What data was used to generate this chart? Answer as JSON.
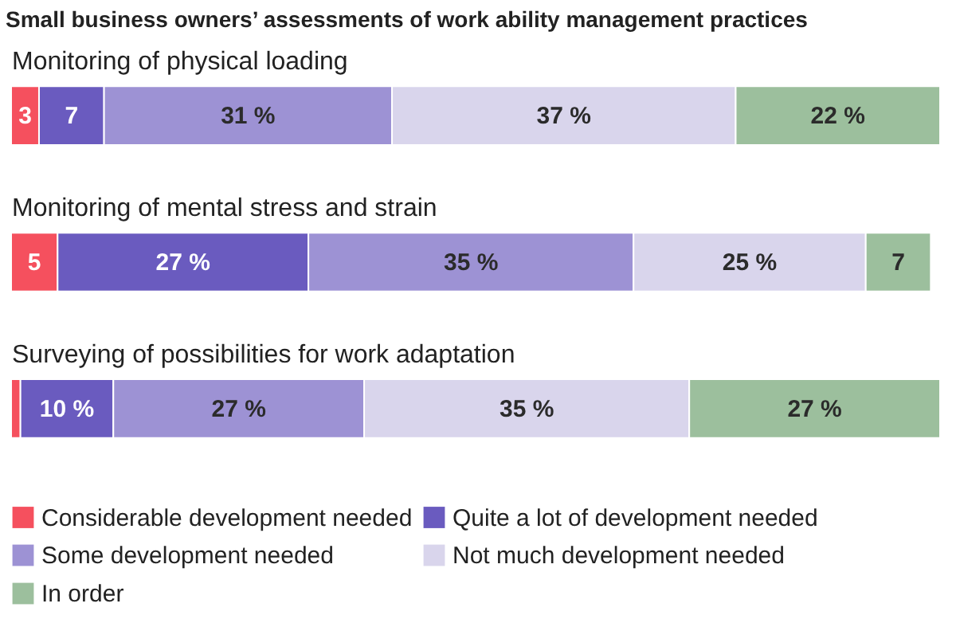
{
  "chart_data": {
    "type": "bar",
    "orientation": "horizontal",
    "stacked": true,
    "title": "Small business owners’ assessments of work ability management practices",
    "categories": [
      "Monitoring of physical loading",
      "Monitoring of mental stress and strain",
      "Surveying of possibilities for work adaptation"
    ],
    "xlim": [
      0,
      100
    ],
    "legend": "bottom",
    "series": [
      {
        "name": "Considerable development needed",
        "color": "#f5505e",
        "values": [
          3,
          5,
          1
        ],
        "value_labels": [
          "3",
          "5",
          null
        ]
      },
      {
        "name": "Quite a lot of development needed",
        "color": "#6a5bbf",
        "values": [
          7,
          27,
          10
        ],
        "value_labels": [
          "7",
          "27 %",
          "10 %"
        ]
      },
      {
        "name": "Some development needed",
        "color": "#9d92d4",
        "values": [
          31,
          35,
          27
        ],
        "value_labels": [
          "31 %",
          "35 %",
          "27 %"
        ]
      },
      {
        "name": "Not much development needed",
        "color": "#d9d5ec",
        "values": [
          37,
          25,
          35
        ],
        "value_labels": [
          "37 %",
          "25 %",
          "35 %"
        ]
      },
      {
        "name": "In order",
        "color": "#9cbf9d",
        "values": [
          22,
          7,
          27
        ],
        "value_labels": [
          "22 %",
          "7",
          "27 %"
        ]
      }
    ]
  }
}
